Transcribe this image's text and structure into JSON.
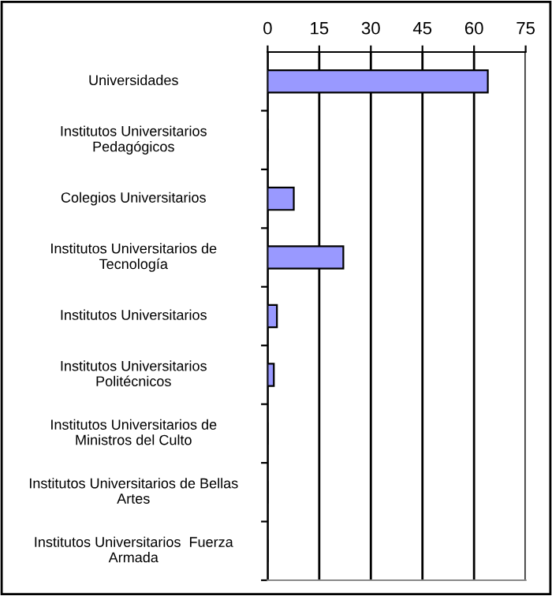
{
  "chart_data": {
    "type": "bar",
    "orientation": "horizontal",
    "categories": [
      "Universidades",
      "Institutos Universitarios\nPedagógicos",
      "Colegios Universitarios",
      "Institutos Universitarios de\nTecnología",
      "Institutos Universitarios",
      "Institutos Universitarios\nPolitécnicos",
      "Institutos Universitarios de\nMinistros del Culto",
      "Institutos Universitarios de Bellas\nArtes",
      "Institutos Universitarios  Fuerza\nArmada"
    ],
    "values": [
      64,
      0,
      7.6,
      22,
      2.7,
      1.8,
      0,
      0,
      0
    ],
    "color": "#9999ff",
    "xlim": [
      0,
      75
    ],
    "xticks": [
      0,
      15,
      30,
      45,
      60,
      75
    ],
    "grid": "x",
    "legend": false
  }
}
